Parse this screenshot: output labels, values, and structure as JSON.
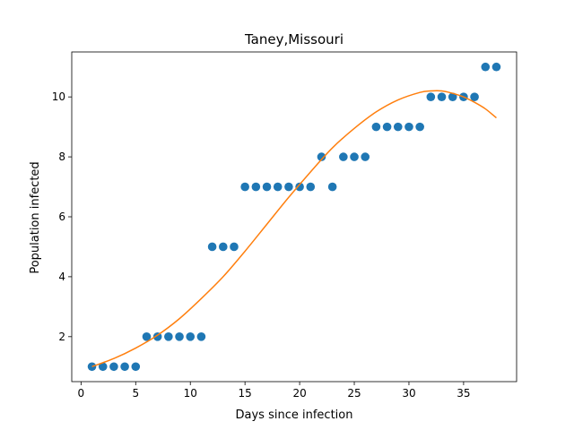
{
  "chart_data": {
    "type": "scatter",
    "title": "Taney,Missouri",
    "xlabel": "Days since infection",
    "ylabel": "Population infected",
    "xlim": [
      -0.85,
      39.85
    ],
    "ylim": [
      0.5,
      11.5
    ],
    "xticks": [
      0,
      5,
      10,
      15,
      20,
      25,
      30,
      35
    ],
    "yticks": [
      2,
      4,
      6,
      8,
      10
    ],
    "grid": false,
    "colors": {
      "points": "#1f77b4",
      "fit": "#ff7f0e"
    },
    "series": [
      {
        "type": "scatter",
        "x": [
          1,
          2,
          3,
          4,
          5,
          6,
          7,
          8,
          9,
          10,
          11,
          12,
          13,
          14,
          15,
          16,
          17,
          18,
          19,
          20,
          21,
          22,
          23,
          24,
          25,
          26,
          27,
          28,
          29,
          30,
          31,
          32,
          33,
          34,
          35,
          36,
          37,
          38
        ],
        "y": [
          1,
          1,
          1,
          1,
          1,
          2,
          2,
          2,
          2,
          2,
          2,
          5,
          5,
          5,
          7,
          7,
          7,
          7,
          7,
          7,
          7,
          8,
          7,
          8,
          8,
          8,
          9,
          9,
          9,
          9,
          9,
          10,
          10,
          10,
          10,
          10,
          11,
          11
        ]
      },
      {
        "type": "line",
        "x": [
          1,
          3,
          5,
          7,
          9,
          11,
          13,
          15,
          17,
          19,
          21,
          23,
          25,
          27,
          29,
          31,
          32,
          33,
          34,
          35,
          36,
          37,
          38
        ],
        "y": [
          1.0,
          1.27,
          1.62,
          2.05,
          2.6,
          3.27,
          4.0,
          4.85,
          5.75,
          6.65,
          7.5,
          8.3,
          8.95,
          9.5,
          9.9,
          10.15,
          10.2,
          10.2,
          10.12,
          10.0,
          9.82,
          9.6,
          9.3
        ]
      }
    ]
  }
}
